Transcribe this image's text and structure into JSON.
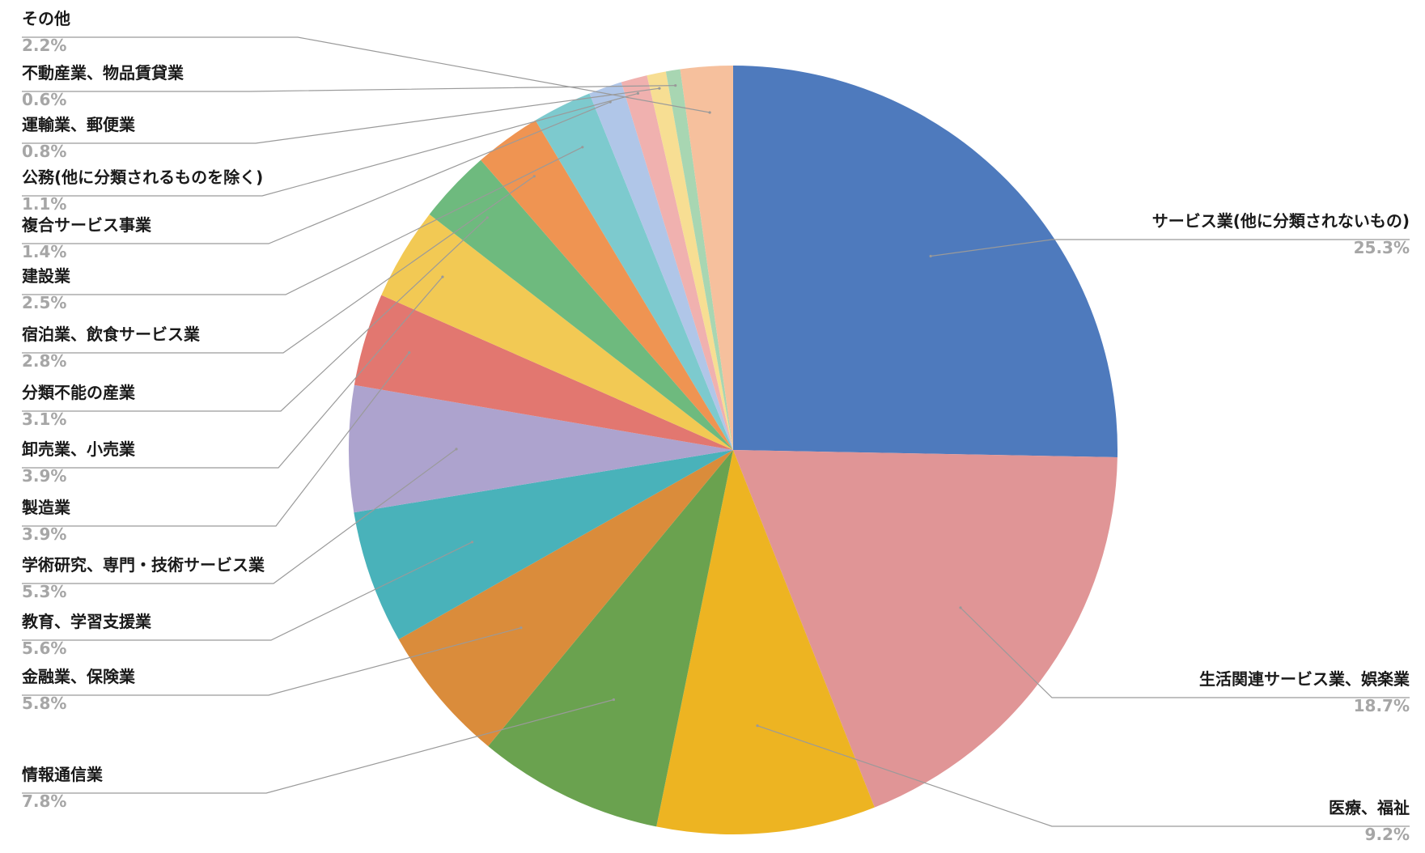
{
  "chart_data": {
    "type": "pie",
    "start_angle_deg": 0,
    "direction": "clockwise",
    "slices": [
      {
        "label": "サービス業(他に分類されないもの)",
        "value": 25.3,
        "value_label": "25.3%",
        "color": "#4E7ABD"
      },
      {
        "label": "生活関連サービス業、娯楽業",
        "value": 18.7,
        "value_label": "18.7%",
        "color": "#E09596"
      },
      {
        "label": "医療、福祉",
        "value": 9.2,
        "value_label": "9.2%",
        "color": "#EDB422"
      },
      {
        "label": "情報通信業",
        "value": 7.8,
        "value_label": "7.8%",
        "color": "#6AA24F"
      },
      {
        "label": "金融業、保険業",
        "value": 5.8,
        "value_label": "5.8%",
        "color": "#DA8C3B"
      },
      {
        "label": "教育、学習支援業",
        "value": 5.6,
        "value_label": "5.6%",
        "color": "#49B2BA"
      },
      {
        "label": "学術研究、専門・技術サービス業",
        "value": 5.3,
        "value_label": "5.3%",
        "color": "#ADA3CE"
      },
      {
        "label": "製造業",
        "value": 3.9,
        "value_label": "3.9%",
        "color": "#E27770"
      },
      {
        "label": "卸売業、小売業",
        "value": 3.9,
        "value_label": "3.9%",
        "color": "#F2C954"
      },
      {
        "label": "分類不能の産業",
        "value": 3.1,
        "value_label": "3.1%",
        "color": "#6EBA7E"
      },
      {
        "label": "宿泊業、飲食サービス業",
        "value": 2.8,
        "value_label": "2.8%",
        "color": "#EF9452"
      },
      {
        "label": "建設業",
        "value": 2.5,
        "value_label": "2.5%",
        "color": "#7DCACE"
      },
      {
        "label": "複合サービス事業",
        "value": 1.4,
        "value_label": "1.4%",
        "color": "#B0C6E8"
      },
      {
        "label": "公務(他に分類されるものを除く)",
        "value": 1.1,
        "value_label": "1.1%",
        "color": "#F0B1AF"
      },
      {
        "label": "運輸業、郵便業",
        "value": 0.8,
        "value_label": "0.8%",
        "color": "#F7DE93"
      },
      {
        "label": "不動産業、物品賃貸業",
        "value": 0.6,
        "value_label": "0.6%",
        "color": "#A8D6B2"
      },
      {
        "label": "その他",
        "value": 2.2,
        "value_label": "2.2%",
        "color": "#F6C09D"
      }
    ]
  }
}
